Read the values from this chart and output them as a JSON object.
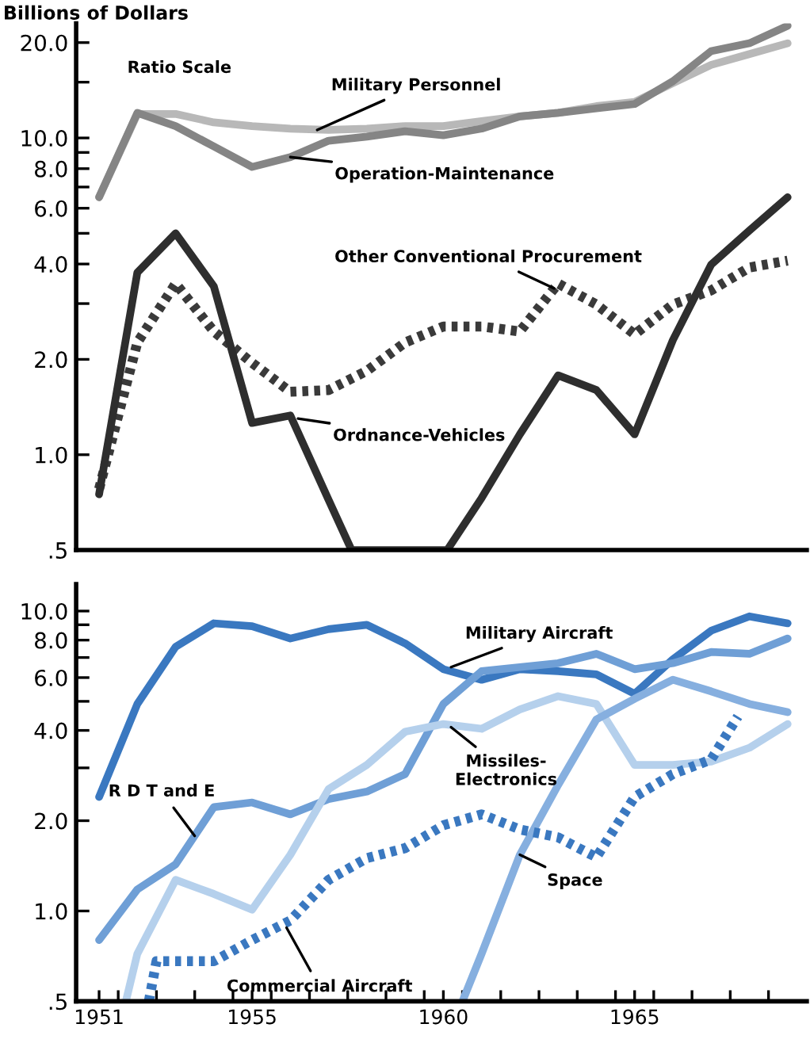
{
  "chart_data": [
    {
      "type": "line",
      "ylabel": "Billions of Dollars",
      "log": "y",
      "xlim": [
        1950.4,
        1969.5
      ],
      "ylim": [
        0.5,
        23
      ],
      "tick_labels": "y",
      "grid": false,
      "legend": false,
      "marker": "none",
      "yticks": [
        {
          "value": 0.5,
          "label": ".5"
        },
        {
          "value": 1,
          "label": "1.0"
        },
        {
          "value": 2,
          "label": "2.0"
        },
        {
          "value": 3,
          "label": null
        },
        {
          "value": 4,
          "label": "4.0"
        },
        {
          "value": 5,
          "label": null
        },
        {
          "value": 6,
          "label": "6.0"
        },
        {
          "value": 7,
          "label": null
        },
        {
          "value": 8,
          "label": "8.0"
        },
        {
          "value": 9,
          "label": null
        },
        {
          "value": 10,
          "label": "10.0"
        },
        {
          "value": 15,
          "label": null
        },
        {
          "value": 20,
          "label": "20.0"
        }
      ],
      "x": [
        1951,
        1952,
        1953,
        1954,
        1955,
        1956,
        1957,
        1958,
        1959,
        1960,
        1961,
        1962,
        1963,
        1964,
        1965,
        1966,
        1967,
        1968,
        1969
      ],
      "series": [
        {
          "color": "#b8b8b8",
          "line_style": "solid",
          "values": [
            6.5,
            11.9,
            11.9,
            11.2,
            10.9,
            10.7,
            10.6,
            10.7,
            10.9,
            10.9,
            11.3,
            11.7,
            12.0,
            12.6,
            13.0,
            14.9,
            17.0,
            18.4,
            19.9
          ]
        },
        {
          "color": "#858585",
          "line_style": "solid",
          "values": [
            6.5,
            12.0,
            10.9,
            9.4,
            8.1,
            8.7,
            9.8,
            10.1,
            10.5,
            10.2,
            10.7,
            11.7,
            12.0,
            12.4,
            12.8,
            15.1,
            18.8,
            19.9,
            22.6
          ]
        },
        {
          "color": "#3a3a3a",
          "line_style": "dotted",
          "values": [
            0.78,
            2.26,
            3.47,
            2.45,
            1.95,
            1.58,
            1.6,
            1.84,
            2.26,
            2.54,
            2.54,
            2.45,
            3.47,
            2.98,
            2.4,
            2.98,
            3.3,
            3.9,
            4.1
          ]
        },
        {
          "color": "#2e2e2e",
          "line_style": "solid",
          "x": [
            1951,
            1952,
            1953,
            1954,
            1955,
            1956,
            1957,
            1957.6,
            1960.1,
            1961,
            1962,
            1963,
            1964,
            1965,
            1966,
            1967,
            1968,
            1969
          ],
          "values": [
            0.75,
            3.76,
            5.0,
            3.4,
            1.26,
            1.33,
            0.72,
            0.5,
            0.5,
            0.73,
            1.16,
            1.78,
            1.6,
            1.16,
            2.3,
            3.98,
            5.1,
            6.5
          ]
        }
      ],
      "annotations": [
        "Ratio Scale",
        {
          "text": "Military Personnel",
          "x": 1956.7,
          "y": 10.6
        },
        {
          "text": "Operation-Maintenance",
          "x": 1956,
          "y": 8.7
        },
        {
          "text": "Other Conventional Procurement",
          "x": 1962.9,
          "y": 3.35
        },
        {
          "text": "Ordnance-Vehicles",
          "x": 1956.2,
          "y": 1.3
        }
      ]
    },
    {
      "type": "line",
      "log": "y",
      "xlim": [
        1950.4,
        1969.5
      ],
      "ylim": [
        0.5,
        12.3
      ],
      "grid": false,
      "legend": false,
      "marker": "none",
      "xticks": [
        1951,
        {
          "value": 1951.5,
          "label": null
        },
        {
          "value": 1952.5,
          "label": null
        },
        {
          "value": 1953.5,
          "label": null
        },
        {
          "value": 1954.5,
          "label": null
        },
        1955,
        {
          "value": 1955.5,
          "label": null
        },
        {
          "value": 1956.5,
          "label": null
        },
        {
          "value": 1957.5,
          "label": null
        },
        {
          "value": 1958.5,
          "label": null
        },
        {
          "value": 1959.5,
          "label": null
        },
        1960,
        {
          "value": 1960.5,
          "label": null
        },
        {
          "value": 1961.5,
          "label": null
        },
        {
          "value": 1962.5,
          "label": null
        },
        {
          "value": 1963.5,
          "label": null
        },
        {
          "value": 1964.5,
          "label": null
        },
        1965,
        {
          "value": 1965.5,
          "label": null
        },
        {
          "value": 1966.5,
          "label": null
        },
        {
          "value": 1967.5,
          "label": null
        },
        {
          "value": 1968.5,
          "label": null
        }
      ],
      "yticks": [
        {
          "value": 0.5,
          "label": ".5"
        },
        {
          "value": 1,
          "label": "1.0"
        },
        {
          "value": 2,
          "label": "2.0"
        },
        {
          "value": 3,
          "label": null
        },
        {
          "value": 4,
          "label": "4.0"
        },
        {
          "value": 5,
          "label": null
        },
        {
          "value": 6,
          "label": "6.0"
        },
        {
          "value": 7,
          "label": null
        },
        {
          "value": 8,
          "label": "8.0"
        },
        {
          "value": 9,
          "label": null
        },
        {
          "value": 10,
          "label": "10.0"
        }
      ],
      "x": [
        1951,
        1952,
        1953,
        1954,
        1955,
        1956,
        1957,
        1958,
        1959,
        1960,
        1961,
        1962,
        1963,
        1964,
        1965,
        1966,
        1967,
        1968,
        1969
      ],
      "series": [
        {
          "color": "#3a78c0",
          "line_style": "solid",
          "values": [
            2.4,
            4.9,
            7.6,
            9.1,
            8.9,
            8.1,
            8.7,
            9.0,
            7.8,
            6.4,
            5.9,
            6.4,
            6.3,
            6.15,
            5.3,
            6.9,
            8.6,
            9.6,
            9.1
          ]
        },
        {
          "color": "#6f9fd6",
          "line_style": "solid",
          "values": [
            0.8,
            1.18,
            1.43,
            2.22,
            2.3,
            2.1,
            2.36,
            2.5,
            2.86,
            4.9,
            6.3,
            6.5,
            6.7,
            7.2,
            6.4,
            6.7,
            7.3,
            7.2,
            8.1
          ]
        },
        {
          "color": "#b5d0ec",
          "line_style": "solid",
          "x": [
            1951.7,
            1952,
            1953,
            1954,
            1955,
            1956,
            1957,
            1958,
            1959,
            1960,
            1961,
            1962,
            1963,
            1964,
            1965,
            1966,
            1967,
            1968,
            1969
          ],
          "values": [
            0.5,
            0.72,
            1.27,
            1.14,
            1.01,
            1.54,
            2.55,
            3.07,
            3.96,
            4.2,
            4.05,
            4.7,
            5.2,
            4.9,
            3.07,
            3.07,
            3.15,
            3.5,
            4.2
          ]
        },
        {
          "color": "#86afdf",
          "line_style": "solid",
          "x": [
            1960.5,
            1961,
            1962,
            1963,
            1964,
            1965,
            1966,
            1967,
            1968,
            1969
          ],
          "values": [
            0.5,
            0.72,
            1.54,
            2.63,
            4.35,
            5.1,
            5.9,
            5.4,
            4.9,
            4.6
          ]
        },
        {
          "color": "#3a78c0",
          "line_style": "dotted",
          "x": [
            1952.3,
            1952.5,
            1953,
            1954,
            1955,
            1956,
            1957,
            1958,
            1959,
            1960,
            1961,
            1962,
            1963,
            1964,
            1965,
            1966,
            1967,
            1967.7
          ],
          "values": [
            0.5,
            0.68,
            0.68,
            0.68,
            0.8,
            0.93,
            1.27,
            1.5,
            1.62,
            1.93,
            2.1,
            1.87,
            1.76,
            1.51,
            2.4,
            2.86,
            3.2,
            4.45
          ]
        }
      ],
      "annotations": [
        {
          "text": "Military Aircraft",
          "x": 1960.2,
          "y": 6.5
        },
        {
          "text": "Missiles-\nElectronics",
          "x": 1960.2,
          "y": 4.1
        },
        {
          "text": "R D T and E",
          "x": 1953.5,
          "y": 1.78
        },
        {
          "text": "Space",
          "x": 1962.0,
          "y": 1.54
        },
        {
          "text": "Commercial Aircraft",
          "x": 1955.9,
          "y": 0.88
        }
      ]
    }
  ]
}
